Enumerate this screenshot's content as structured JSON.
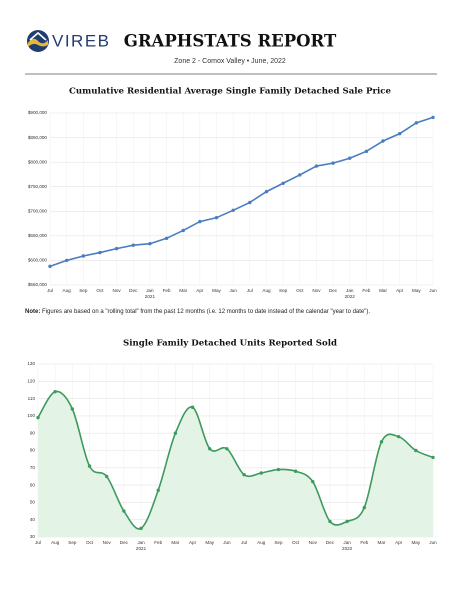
{
  "header": {
    "logo_text": "VIREB",
    "title": "GRAPHSTATS REPORT",
    "subtitle": "Zone 2 - Comox Valley • June, 2022"
  },
  "note": {
    "label": "Note:",
    "text": "Figures are based on a \"rolling total\" from the past 12 months (i.e. 12 months to date instead of the calendar \"year to date\")."
  },
  "chart_data": [
    {
      "type": "line",
      "title": "Cumulative Residential Average Single Family Detached Sale Price",
      "categories": [
        "Jul",
        "Aug",
        "Sep",
        "Oct",
        "Nov",
        "Dec",
        "Jan\n2021",
        "Feb",
        "Mar",
        "Apr",
        "May",
        "Jun",
        "Jul",
        "Aug",
        "Sep",
        "Oct",
        "Nov",
        "Dec",
        "Jan\n2022",
        "Feb",
        "Mar",
        "Apr",
        "May",
        "Jun"
      ],
      "values": [
        588000,
        600000,
        609000,
        616000,
        624000,
        631000,
        634000,
        645000,
        661000,
        679000,
        687000,
        702000,
        718000,
        740000,
        757000,
        774000,
        792000,
        798000,
        808000,
        822000,
        843000,
        858000,
        880000,
        891000
      ],
      "color": "#4a7cc0",
      "smooth": false,
      "area": false,
      "grid": true,
      "ylim": [
        550000,
        900000
      ],
      "yticks": [
        {
          "value": 550000,
          "label": "$550,000"
        },
        {
          "value": 600000,
          "label": "$600,000"
        },
        {
          "value": 650000,
          "label": "$650,000"
        },
        {
          "value": 700000,
          "label": "$700,000"
        },
        {
          "value": 750000,
          "label": "$750,000"
        },
        {
          "value": 800000,
          "label": "$800,000"
        },
        {
          "value": 850000,
          "label": "$850,000"
        },
        {
          "value": 900000,
          "label": "$900,000"
        }
      ]
    },
    {
      "type": "line",
      "title": "Single Family Detached Units Reported Sold",
      "categories": [
        "Jul",
        "Aug",
        "Sep",
        "Oct",
        "Nov",
        "Dec",
        "Jan\n2021",
        "Feb",
        "Mar",
        "Apr",
        "May",
        "Jun",
        "Jul",
        "Aug",
        "Sep",
        "Oct",
        "Nov",
        "Dec",
        "Jan\n2022",
        "Feb",
        "Mar",
        "Apr",
        "May",
        "Jun"
      ],
      "values": [
        99,
        114,
        104,
        71,
        65,
        45,
        35,
        57,
        90,
        105,
        81,
        81,
        66,
        67,
        69,
        68,
        62,
        39,
        39,
        47,
        85,
        88,
        80,
        76
      ],
      "color": "#3d9a5c",
      "area_color": "#e3f4e7",
      "smooth": true,
      "area": true,
      "grid": true,
      "ylim": [
        30,
        130
      ],
      "yticks": [
        30,
        40,
        50,
        60,
        70,
        80,
        90,
        100,
        110,
        120,
        130
      ]
    }
  ]
}
